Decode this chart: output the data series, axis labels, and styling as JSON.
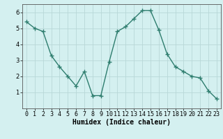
{
  "x": [
    0,
    1,
    2,
    3,
    4,
    5,
    6,
    7,
    8,
    9,
    10,
    11,
    12,
    13,
    14,
    15,
    16,
    17,
    18,
    19,
    20,
    21,
    22,
    23
  ],
  "y": [
    5.4,
    5.0,
    4.8,
    3.3,
    2.6,
    2.0,
    1.4,
    2.3,
    0.8,
    0.8,
    2.9,
    4.8,
    5.1,
    5.6,
    6.1,
    6.1,
    4.9,
    3.4,
    2.6,
    2.3,
    2.0,
    1.9,
    1.1,
    0.6
  ],
  "line_color": "#2e7d6e",
  "marker": "+",
  "marker_size": 4,
  "line_width": 1.0,
  "bg_color": "#d4f0f0",
  "grid_color": "#b8d8d8",
  "xlabel": "Humidex (Indice chaleur)",
  "xlabel_fontsize": 7,
  "tick_fontsize": 6,
  "xlim": [
    -0.5,
    23.5
  ],
  "ylim": [
    0,
    6.5
  ],
  "yticks": [
    1,
    2,
    3,
    4,
    5,
    6
  ],
  "xticks": [
    0,
    1,
    2,
    3,
    4,
    5,
    6,
    7,
    8,
    9,
    10,
    11,
    12,
    13,
    14,
    15,
    16,
    17,
    18,
    19,
    20,
    21,
    22,
    23
  ]
}
